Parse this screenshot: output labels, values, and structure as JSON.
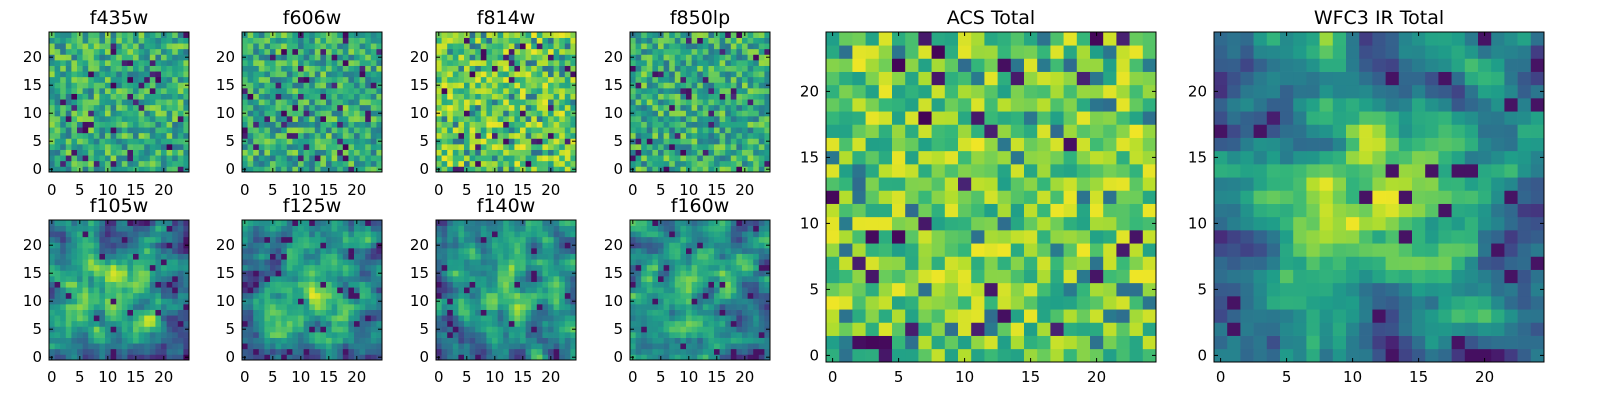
{
  "chart_data": {
    "type": "heatmap",
    "colormap": "viridis",
    "grid_size": 25,
    "panels": [
      {
        "title": "f435w",
        "xticks": [
          "0",
          "5",
          "10",
          "15",
          "20"
        ],
        "yticks": [
          "0",
          "5",
          "10",
          "15",
          "20"
        ],
        "pattern": "noise",
        "seed": 11
      },
      {
        "title": "f606w",
        "xticks": [
          "0",
          "5",
          "10",
          "15",
          "20"
        ],
        "yticks": [
          "0",
          "5",
          "10",
          "15",
          "20"
        ],
        "pattern": "noise",
        "seed": 23
      },
      {
        "title": "f814w",
        "xticks": [
          "0",
          "5",
          "10",
          "15",
          "20"
        ],
        "yticks": [
          "0",
          "5",
          "10",
          "15",
          "20"
        ],
        "pattern": "noise-bright",
        "seed": 37
      },
      {
        "title": "f850lp",
        "xticks": [
          "0",
          "5",
          "10",
          "15",
          "20"
        ],
        "yticks": [
          "0",
          "5",
          "10",
          "15",
          "20"
        ],
        "pattern": "noise",
        "seed": 41
      },
      {
        "title": "f105w",
        "xticks": [
          "0",
          "5",
          "10",
          "15",
          "20"
        ],
        "yticks": [
          "0",
          "5",
          "10",
          "15",
          "20"
        ],
        "pattern": "smooth-source",
        "seed": 53
      },
      {
        "title": "f125w",
        "xticks": [
          "0",
          "5",
          "10",
          "15",
          "20"
        ],
        "yticks": [
          "0",
          "5",
          "10",
          "15",
          "20"
        ],
        "pattern": "smooth-source",
        "seed": 67
      },
      {
        "title": "f140w",
        "xticks": [
          "0",
          "5",
          "10",
          "15",
          "20"
        ],
        "yticks": [
          "0",
          "5",
          "10",
          "15",
          "20"
        ],
        "pattern": "smooth-source",
        "seed": 79
      },
      {
        "title": "f160w",
        "xticks": [
          "0",
          "5",
          "10",
          "15",
          "20"
        ],
        "yticks": [
          "0",
          "5",
          "10",
          "15",
          "20"
        ],
        "pattern": "smooth-source",
        "seed": 83
      },
      {
        "title": "ACS Total",
        "xticks": [
          "0",
          "5",
          "10",
          "15",
          "20"
        ],
        "yticks": [
          "0",
          "5",
          "10",
          "15",
          "20"
        ],
        "pattern": "noise-bright",
        "seed": 97
      },
      {
        "title": "WFC3 IR Total",
        "xticks": [
          "0",
          "5",
          "10",
          "15",
          "20"
        ],
        "yticks": [
          "0",
          "5",
          "10",
          "15",
          "20"
        ],
        "pattern": "central-source",
        "seed": 101
      }
    ]
  }
}
